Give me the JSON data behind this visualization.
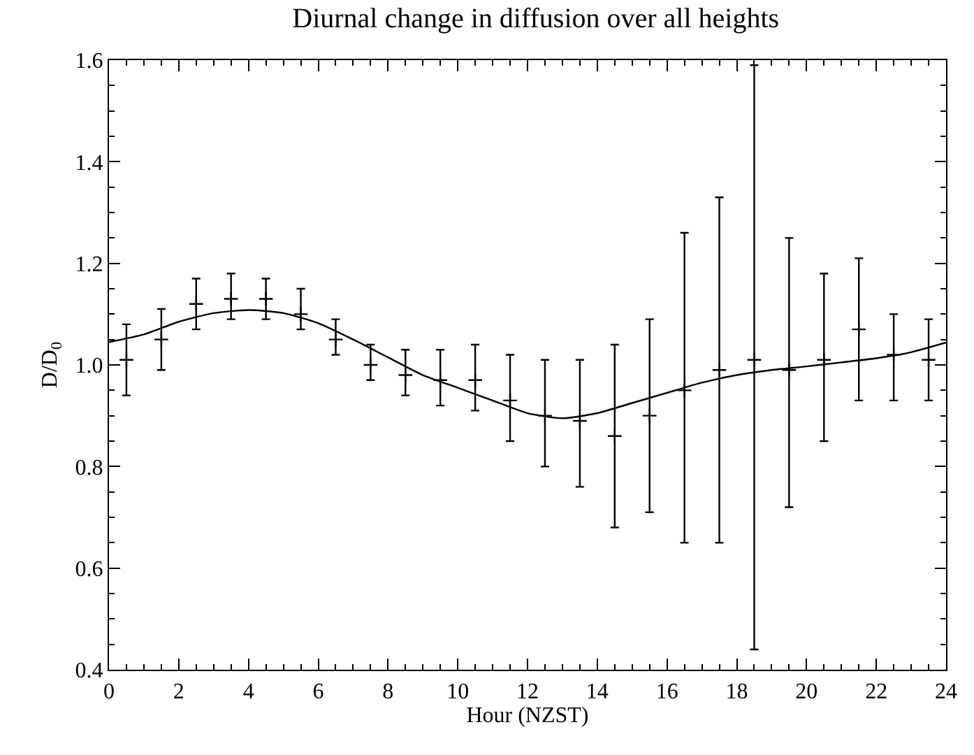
{
  "chart_data": {
    "type": "scatter",
    "title": "Diurnal change in diffusion over all heights",
    "xlabel": "Hour (NZST)",
    "ylabel": "D/D$_{0}$",
    "xlim": [
      0,
      24
    ],
    "xticks": [
      0,
      2,
      4,
      6,
      8,
      10,
      12,
      14,
      16,
      18,
      20,
      22,
      24
    ],
    "ylim": [
      0.4,
      1.6
    ],
    "yticks": [
      {
        "value": 0.4,
        "label": "0.4"
      },
      {
        "value": 0.6,
        "label": "0.6"
      },
      {
        "value": 0.8,
        "label": "0.8"
      },
      {
        "value": 1.0,
        "label": "1.0"
      },
      {
        "value": 1.2,
        "label": "1.2"
      },
      {
        "value": 1.4,
        "label": "1.4"
      },
      {
        "value": 1.6,
        "label": "1.6"
      }
    ],
    "series": [
      {
        "color": "#000000",
        "marker": "cross",
        "x": [
          0.5,
          1.5,
          2.5,
          3.5,
          4.5,
          5.5,
          6.5,
          7.5,
          8.5,
          9.5,
          10.5,
          11.5,
          12.5,
          13.5,
          14.5,
          15.5,
          16.5,
          17.5,
          18.5,
          19.5,
          20.5,
          21.5,
          22.5,
          23.5
        ],
        "values": [
          1.01,
          1.05,
          1.12,
          1.13,
          1.13,
          1.1,
          1.05,
          1.0,
          0.98,
          0.97,
          0.97,
          0.93,
          0.9,
          0.89,
          0.86,
          0.9,
          0.95,
          0.99,
          1.01,
          0.99,
          1.01,
          1.07,
          1.02,
          1.01
        ],
        "errors": [
          [
            0.94,
            1.08
          ],
          [
            0.99,
            1.11
          ],
          [
            1.07,
            1.17
          ],
          [
            1.09,
            1.18
          ],
          [
            1.09,
            1.17
          ],
          [
            1.07,
            1.15
          ],
          [
            1.02,
            1.09
          ],
          [
            0.97,
            1.04
          ],
          [
            0.94,
            1.03
          ],
          [
            0.92,
            1.03
          ],
          [
            0.91,
            1.04
          ],
          [
            0.85,
            1.02
          ],
          [
            0.8,
            1.01
          ],
          [
            0.76,
            1.01
          ],
          [
            0.68,
            1.04
          ],
          [
            0.71,
            1.09
          ],
          [
            0.65,
            1.26
          ],
          [
            0.65,
            1.33
          ],
          [
            0.44,
            1.59
          ],
          [
            0.72,
            1.25
          ],
          [
            0.85,
            1.18
          ],
          [
            0.93,
            1.21
          ],
          [
            0.93,
            1.1
          ],
          [
            0.93,
            1.09
          ]
        ]
      },
      {
        "type": "line",
        "color": "#000000",
        "line_style": "solid",
        "x": [
          0,
          1,
          2,
          3,
          4,
          5,
          6,
          7,
          8,
          9,
          10,
          11,
          12,
          13,
          14,
          15,
          16,
          17,
          18,
          19,
          20,
          21,
          22,
          23,
          24
        ],
        "values": [
          1.045,
          1.06,
          1.085,
          1.102,
          1.108,
          1.102,
          1.082,
          1.05,
          1.015,
          0.98,
          0.955,
          0.93,
          0.905,
          0.895,
          0.905,
          0.925,
          0.945,
          0.965,
          0.98,
          0.99,
          0.997,
          1.005,
          1.013,
          1.025,
          1.044
        ]
      }
    ]
  }
}
